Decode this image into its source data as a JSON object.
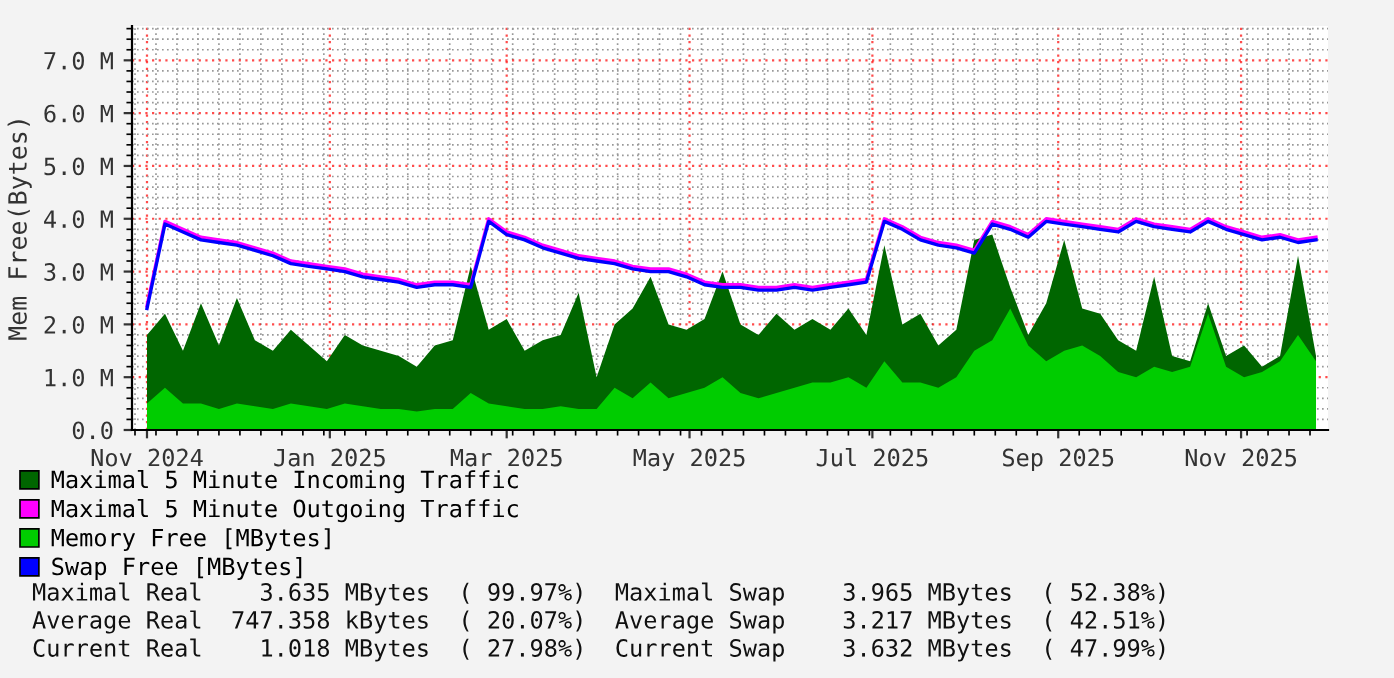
{
  "chart_data": {
    "type": "area",
    "ylabel": "Mem Free(Bytes)",
    "x": [
      "2024-11-01",
      "2024-11-07",
      "2024-11-13",
      "2024-11-19",
      "2024-11-25",
      "2024-12-01",
      "2024-12-07",
      "2024-12-13",
      "2024-12-19",
      "2024-12-25",
      "2024-12-31",
      "2025-01-06",
      "2025-01-12",
      "2025-01-18",
      "2025-01-24",
      "2025-01-30",
      "2025-02-05",
      "2025-02-11",
      "2025-02-17",
      "2025-02-23",
      "2025-03-01",
      "2025-03-07",
      "2025-03-13",
      "2025-03-19",
      "2025-03-25",
      "2025-03-31",
      "2025-04-06",
      "2025-04-12",
      "2025-04-18",
      "2025-04-24",
      "2025-04-30",
      "2025-05-06",
      "2025-05-12",
      "2025-05-18",
      "2025-05-24",
      "2025-05-30",
      "2025-06-05",
      "2025-06-11",
      "2025-06-17",
      "2025-06-23",
      "2025-06-29",
      "2025-07-05",
      "2025-07-11",
      "2025-07-17",
      "2025-07-23",
      "2025-07-29",
      "2025-08-04",
      "2025-08-10",
      "2025-08-16",
      "2025-08-22",
      "2025-08-28",
      "2025-09-03",
      "2025-09-09",
      "2025-09-15",
      "2025-09-21",
      "2025-09-27",
      "2025-10-03",
      "2025-10-09",
      "2025-10-15",
      "2025-10-21",
      "2025-10-27",
      "2025-11-02",
      "2025-11-08",
      "2025-11-14",
      "2025-11-20",
      "2025-11-26"
    ],
    "series": [
      {
        "name": "Maximal 5 Minute Incoming Traffic",
        "color": "#006600",
        "values": [
          1.8,
          2.2,
          1.5,
          2.4,
          1.6,
          2.5,
          1.7,
          1.5,
          1.9,
          1.6,
          1.3,
          1.8,
          1.6,
          1.5,
          1.4,
          1.2,
          1.6,
          1.7,
          3.1,
          1.9,
          2.1,
          1.5,
          1.7,
          1.8,
          2.6,
          1.0,
          2.0,
          2.3,
          2.9,
          2.0,
          1.9,
          2.1,
          3.0,
          2.0,
          1.8,
          2.2,
          1.9,
          2.1,
          1.9,
          2.3,
          1.8,
          3.5,
          2.0,
          2.2,
          1.6,
          1.9,
          3.6,
          3.7,
          2.7,
          1.8,
          2.4,
          3.6,
          2.3,
          2.2,
          1.7,
          1.5,
          2.9,
          1.4,
          1.3,
          2.4,
          1.4,
          1.6,
          1.2,
          1.4,
          3.3,
          1.4
        ]
      },
      {
        "name": "Maximal 5 Minute Outgoing Traffic",
        "type": "line",
        "color": "#ff00ff",
        "values": [
          2.35,
          3.95,
          3.8,
          3.65,
          3.6,
          3.55,
          3.45,
          3.35,
          3.2,
          3.15,
          3.1,
          3.05,
          2.95,
          2.9,
          2.85,
          2.75,
          2.8,
          2.8,
          2.75,
          4.0,
          3.75,
          3.65,
          3.5,
          3.4,
          3.3,
          3.25,
          3.2,
          3.1,
          3.05,
          3.05,
          2.95,
          2.8,
          2.75,
          2.75,
          2.7,
          2.7,
          2.75,
          2.7,
          2.75,
          2.8,
          2.85,
          4.0,
          3.85,
          3.65,
          3.55,
          3.5,
          3.4,
          3.95,
          3.85,
          3.7,
          4.0,
          3.95,
          3.9,
          3.85,
          3.8,
          4.0,
          3.9,
          3.85,
          3.8,
          4.0,
          3.85,
          3.75,
          3.65,
          3.7,
          3.6,
          3.65
        ]
      },
      {
        "name": "Memory Free [MBytes]",
        "color": "#00cc00",
        "values": [
          0.5,
          0.8,
          0.5,
          0.5,
          0.4,
          0.5,
          0.45,
          0.4,
          0.5,
          0.45,
          0.4,
          0.5,
          0.45,
          0.4,
          0.4,
          0.35,
          0.4,
          0.4,
          0.7,
          0.5,
          0.45,
          0.4,
          0.4,
          0.45,
          0.4,
          0.4,
          0.8,
          0.6,
          0.9,
          0.6,
          0.7,
          0.8,
          1.0,
          0.7,
          0.6,
          0.7,
          0.8,
          0.9,
          0.9,
          1.0,
          0.8,
          1.3,
          0.9,
          0.9,
          0.8,
          1.0,
          1.5,
          1.7,
          2.3,
          1.6,
          1.3,
          1.5,
          1.6,
          1.4,
          1.1,
          1.0,
          1.2,
          1.1,
          1.2,
          2.2,
          1.2,
          1.0,
          1.1,
          1.3,
          1.8,
          1.3
        ]
      },
      {
        "name": "Swap Free [MBytes]",
        "type": "line",
        "color": "#0000ff",
        "values": [
          2.3,
          3.9,
          3.75,
          3.6,
          3.55,
          3.5,
          3.4,
          3.3,
          3.15,
          3.1,
          3.05,
          3.0,
          2.9,
          2.85,
          2.8,
          2.7,
          2.75,
          2.75,
          2.7,
          3.95,
          3.7,
          3.6,
          3.45,
          3.35,
          3.25,
          3.2,
          3.15,
          3.05,
          3.0,
          3.0,
          2.9,
          2.75,
          2.7,
          2.7,
          2.65,
          2.65,
          2.7,
          2.65,
          2.7,
          2.75,
          2.8,
          3.95,
          3.8,
          3.6,
          3.5,
          3.45,
          3.35,
          3.9,
          3.8,
          3.65,
          3.95,
          3.9,
          3.85,
          3.8,
          3.75,
          3.95,
          3.85,
          3.8,
          3.75,
          3.95,
          3.8,
          3.7,
          3.6,
          3.65,
          3.55,
          3.6
        ]
      }
    ],
    "xlim": [
      "2024-10-27",
      "2025-11-30"
    ],
    "xticks": [
      {
        "value": "2024-11-01",
        "label": "Nov 2024"
      },
      {
        "value": "2025-01-01",
        "label": "Jan 2025"
      },
      {
        "value": "2025-03-01",
        "label": "Mar 2025"
      },
      {
        "value": "2025-05-01",
        "label": "May 2025"
      },
      {
        "value": "2025-07-01",
        "label": "Jul 2025"
      },
      {
        "value": "2025-09-01",
        "label": "Sep 2025"
      },
      {
        "value": "2025-11-01",
        "label": "Nov 2025"
      }
    ],
    "ylim": [
      0,
      7.65
    ],
    "yticks": [
      {
        "value": 0,
        "label": "0.0"
      },
      {
        "value": 1,
        "label": "1.0 M"
      },
      {
        "value": 2,
        "label": "2.0 M"
      },
      {
        "value": 3,
        "label": "3.0 M"
      },
      {
        "value": 4,
        "label": "4.0 M"
      },
      {
        "value": 5,
        "label": "5.0 M"
      },
      {
        "value": 6,
        "label": "6.0 M"
      },
      {
        "value": 7,
        "label": "7.0 M"
      }
    ],
    "grid": true,
    "legend": "bottom",
    "annotations": [
      "Maximal Real    3.635 MBytes  ( 99.97%)  Maximal Swap    3.965 MBytes  ( 52.38%)",
      "Average Real  747.358 kBytes  ( 20.07%)  Average Swap    3.217 MBytes  ( 42.51%)",
      "Current Real    1.018 MBytes  ( 27.98%)  Current Swap    3.632 MBytes  ( 47.99%)"
    ]
  }
}
